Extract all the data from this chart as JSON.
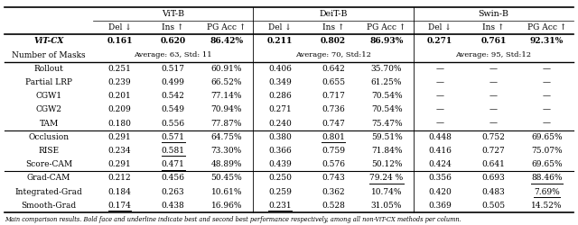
{
  "col_groups": [
    "ViT-B",
    "DeiT-B",
    "Swin-B"
  ],
  "sub_cols": [
    "Del ↓",
    "Ins ↑",
    "PG Acc ↑"
  ],
  "row_labels": [
    "ViT-CX",
    "Number of Masks",
    "Rollout",
    "Partial LRP",
    "CGW1",
    "CGW2",
    "TAM",
    "Occlusion",
    "RISE",
    "Score-CAM",
    "Grad-CAM",
    "Integrated-Grad",
    "Smooth-Grad"
  ],
  "data": [
    [
      "0.161",
      "0.620",
      "86.42%",
      "0.211",
      "0.802",
      "86.93%",
      "0.271",
      "0.761",
      "92.31%"
    ],
    [
      "",
      "Average: 63, Std: 11",
      "",
      "",
      "Average: 70, Std:12",
      "",
      "",
      "Average: 95, Std:12",
      ""
    ],
    [
      "0.251",
      "0.517",
      "60.91%",
      "0.406",
      "0.642",
      "35.70%",
      "—",
      "—",
      "—"
    ],
    [
      "0.239",
      "0.499",
      "66.52%",
      "0.349",
      "0.655",
      "61.25%",
      "—",
      "—",
      "—"
    ],
    [
      "0.201",
      "0.542",
      "77.14%",
      "0.286",
      "0.717",
      "70.54%",
      "—",
      "—",
      "—"
    ],
    [
      "0.209",
      "0.549",
      "70.94%",
      "0.271",
      "0.736",
      "70.54%",
      "—",
      "—",
      "—"
    ],
    [
      "0.180",
      "0.556",
      "77.87%",
      "0.240",
      "0.747",
      "75.47%",
      "—",
      "—",
      "—"
    ],
    [
      "0.291",
      "0.571",
      "64.75%",
      "0.380",
      "0.801",
      "59.51%",
      "0.448",
      "0.752",
      "69.65%"
    ],
    [
      "0.234",
      "0.581",
      "73.30%",
      "0.366",
      "0.759",
      "71.84%",
      "0.416",
      "0.727",
      "75.07%"
    ],
    [
      "0.291",
      "0.471",
      "48.89%",
      "0.439",
      "0.576",
      "50.12%",
      "0.424",
      "0.641",
      "69.65%"
    ],
    [
      "0.212",
      "0.456",
      "50.45%",
      "0.250",
      "0.743",
      "79.24 %",
      "0.356",
      "0.693",
      "88.46%"
    ],
    [
      "0.184",
      "0.263",
      "10.61%",
      "0.259",
      "0.362",
      "10.74%",
      "0.420",
      "0.483",
      "7.69%"
    ],
    [
      "0.174",
      "0.438",
      "16.96%",
      "0.231",
      "0.528",
      "31.05%",
      "0.369",
      "0.505",
      "14.52%"
    ]
  ],
  "underline_cells": {
    "6": [
      8
    ],
    "7": [
      1,
      4
    ],
    "8": [
      1
    ],
    "9": [
      1
    ],
    "10": [
      5,
      8
    ],
    "11": [
      8
    ],
    "12": [
      0,
      3
    ]
  },
  "section_dividers_after": [
    1,
    6,
    9
  ],
  "footnote": "Main comparison results. Bold face and underline indicate best and second best performance respectively, among all non-ViT-CX methods per column."
}
